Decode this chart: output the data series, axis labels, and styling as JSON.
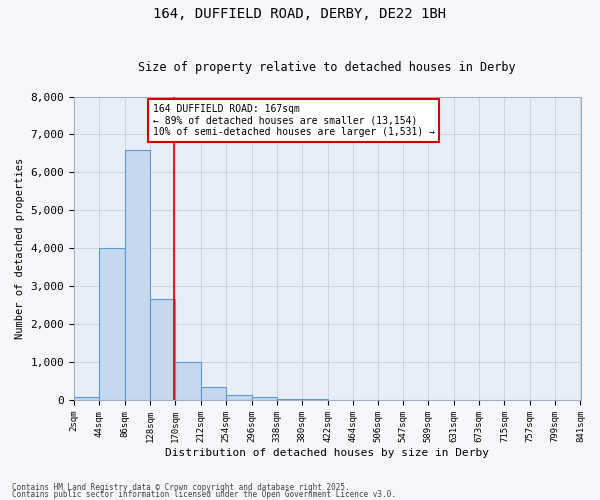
{
  "title_line1": "164, DUFFIELD ROAD, DERBY, DE22 1BH",
  "title_line2": "Size of property relative to detached houses in Derby",
  "xlabel": "Distribution of detached houses by size in Derby",
  "ylabel": "Number of detached properties",
  "bin_edges": [
    2,
    44,
    86,
    128,
    170,
    212,
    254,
    296,
    338,
    380,
    422,
    464,
    506,
    547,
    589,
    631,
    673,
    715,
    757,
    799,
    841
  ],
  "bar_heights": [
    70,
    4000,
    6600,
    2650,
    1000,
    350,
    130,
    70,
    30,
    15,
    5,
    2,
    1,
    0,
    0,
    0,
    0,
    0,
    0,
    0
  ],
  "bar_color": "#c5d8ee",
  "bar_edge_color": "#5b9bd5",
  "ylim": [
    0,
    8000
  ],
  "yticks": [
    0,
    1000,
    2000,
    3000,
    4000,
    5000,
    6000,
    7000,
    8000
  ],
  "property_size": 167,
  "red_line_color": "#cc0000",
  "annotation_text": "164 DUFFIELD ROAD: 167sqm\n← 89% of detached houses are smaller (13,154)\n10% of semi-detached houses are larger (1,531) →",
  "annotation_box_color": "#ffffff",
  "annotation_box_edge": "#cc0000",
  "grid_color": "#c8d4e8",
  "bg_color": "#e8eef8",
  "footer_line1": "Contains HM Land Registry data © Crown copyright and database right 2025.",
  "footer_line2": "Contains public sector information licensed under the Open Government Licence v3.0."
}
